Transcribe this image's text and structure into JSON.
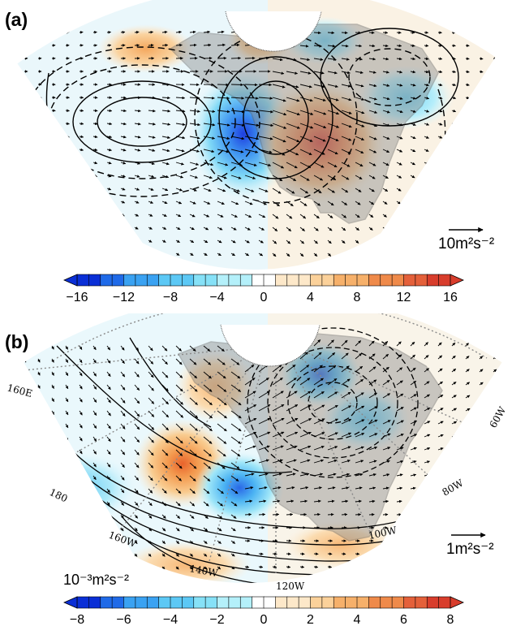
{
  "panels": [
    {
      "id": "a",
      "label": "(a)",
      "reference_vector": "10m²s⁻²",
      "colorbar": {
        "unit_label": "",
        "ticks": [
          "−16",
          "−12",
          "−8",
          "−4",
          "0",
          "4",
          "8",
          "12",
          "16"
        ],
        "range": [
          -16,
          16
        ],
        "colors": [
          "#0a2fd6",
          "#1f6ae8",
          "#3aa2f2",
          "#5cc8f5",
          "#86e1f7",
          "#b4f0fa",
          "#ffffff",
          "#fde8c9",
          "#fbd19a",
          "#f6b06a",
          "#ef8a4a",
          "#e4603a",
          "#d83d2c"
        ]
      }
    },
    {
      "id": "b",
      "label": "(b)",
      "reference_vector": "1m²s⁻²",
      "longitude_labels": [
        "160E",
        "180",
        "160W",
        "140W",
        "120W",
        "100W",
        "80W",
        "60W"
      ],
      "colorbar": {
        "unit_label": "10⁻³m²s⁻²",
        "ticks": [
          "−8",
          "−6",
          "−4",
          "−2",
          "0",
          "2",
          "4",
          "6",
          "8"
        ],
        "range": [
          -8,
          8
        ],
        "colors": [
          "#0a2fd6",
          "#1f6ae8",
          "#3aa2f2",
          "#5cc8f5",
          "#86e1f7",
          "#b4f0fa",
          "#ffffff",
          "#fde8c9",
          "#fbd19a",
          "#f6b06a",
          "#ef8a4a",
          "#e4603a",
          "#d83d2c"
        ]
      }
    }
  ]
}
